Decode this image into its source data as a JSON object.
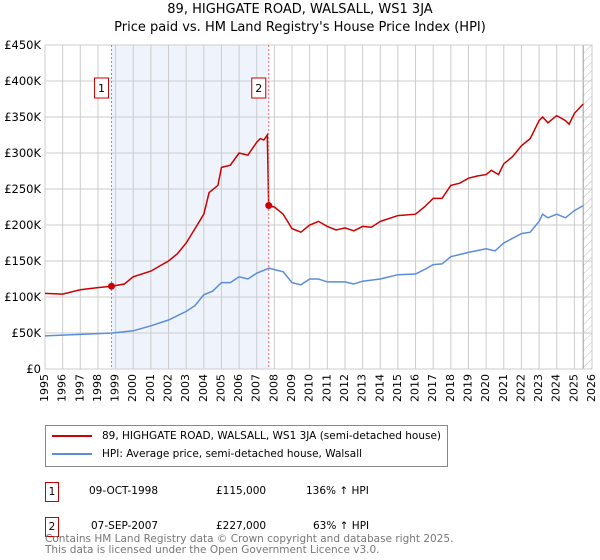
{
  "chart_data": {
    "type": "line",
    "title": "89, HIGHGATE ROAD, WALSALL, WS1 3JA",
    "subtitle": "Price paid vs. HM Land Registry's House Price Index (HPI)",
    "xlabel": "",
    "ylabel": "",
    "xlim": [
      1995,
      2026
    ],
    "ylim": [
      0,
      450000
    ],
    "grid": true,
    "x_ticks": [
      "1995",
      "1996",
      "1997",
      "1998",
      "1999",
      "2000",
      "2001",
      "2002",
      "2003",
      "2004",
      "2005",
      "2006",
      "2007",
      "2008",
      "2009",
      "2010",
      "2011",
      "2012",
      "2013",
      "2014",
      "2015",
      "2016",
      "2017",
      "2018",
      "2019",
      "2020",
      "2021",
      "2022",
      "2023",
      "2024",
      "2025",
      "2026"
    ],
    "y_ticks": [
      {
        "v": 0,
        "label": "£0"
      },
      {
        "v": 50000,
        "label": "£50K"
      },
      {
        "v": 100000,
        "label": "£100K"
      },
      {
        "v": 150000,
        "label": "£150K"
      },
      {
        "v": 200000,
        "label": "£200K"
      },
      {
        "v": 250000,
        "label": "£250K"
      },
      {
        "v": 300000,
        "label": "£300K"
      },
      {
        "v": 350000,
        "label": "£350K"
      },
      {
        "v": 400000,
        "label": "£400K"
      },
      {
        "v": 450000,
        "label": "£450K"
      }
    ],
    "shaded_range": [
      1998.77,
      2007.68
    ],
    "hatched_from": 2025.5,
    "series": [
      {
        "name": "89, HIGHGATE ROAD, WALSALL, WS1 3JA (semi-detached house)",
        "color": "#cc0000",
        "x": [
          1995,
          1996,
          1997,
          1998,
          1998.77,
          1999.5,
          2000,
          2001,
          2001.5,
          2002,
          2002.5,
          2003,
          2003.5,
          2004,
          2004.3,
          2004.8,
          2005,
          2005.5,
          2006,
          2006.5,
          2007,
          2007.2,
          2007.4,
          2007.6,
          2007.68,
          2008,
          2008.5,
          2009,
          2009.5,
          2010,
          2010.5,
          2011,
          2011.5,
          2012,
          2012.5,
          2013,
          2013.5,
          2014,
          2015,
          2016,
          2016.5,
          2017,
          2017.5,
          2018,
          2018.5,
          2019,
          2019.5,
          2020,
          2020.3,
          2020.7,
          2021,
          2021.5,
          2022,
          2022.5,
          2023,
          2023.2,
          2023.5,
          2024,
          2024.5,
          2024.7,
          2025,
          2025.5
        ],
        "y": [
          105000,
          104000,
          110000,
          113000,
          115000,
          118000,
          128000,
          136000,
          143000,
          150000,
          160000,
          175000,
          195000,
          215000,
          245000,
          255000,
          280000,
          283000,
          300000,
          297000,
          315000,
          320000,
          318000,
          325000,
          227000,
          225000,
          215000,
          195000,
          190000,
          200000,
          205000,
          198000,
          193000,
          196000,
          192000,
          198000,
          197000,
          205000,
          213000,
          215000,
          225000,
          237000,
          237000,
          255000,
          258000,
          265000,
          268000,
          270000,
          276000,
          270000,
          285000,
          295000,
          310000,
          320000,
          345000,
          350000,
          342000,
          352000,
          345000,
          340000,
          355000,
          368000
        ]
      },
      {
        "name": "HPI: Average price, semi-detached house, Walsall",
        "color": "#5b8ed6",
        "x": [
          1995,
          1997,
          1998.8,
          2000,
          2001,
          2002,
          2003,
          2003.5,
          2004,
          2004.5,
          2005,
          2005.5,
          2006,
          2006.5,
          2007,
          2007.7,
          2008,
          2008.5,
          2009,
          2009.5,
          2010,
          2010.5,
          2011,
          2012,
          2012.5,
          2013,
          2014,
          2015,
          2016,
          2016.5,
          2017,
          2017.5,
          2018,
          2019,
          2020,
          2020.5,
          2021,
          2022,
          2022.5,
          2023,
          2023.2,
          2023.5,
          2024,
          2024.5,
          2025,
          2025.5
        ],
        "y": [
          46000,
          48000,
          50000,
          53000,
          60000,
          68000,
          80000,
          88000,
          103000,
          108000,
          120000,
          120000,
          128000,
          125000,
          133000,
          140000,
          138000,
          135000,
          120000,
          117000,
          125000,
          125000,
          121000,
          121000,
          118000,
          122000,
          125000,
          131000,
          132000,
          138000,
          145000,
          146000,
          156000,
          162000,
          167000,
          164000,
          175000,
          188000,
          190000,
          205000,
          215000,
          210000,
          215000,
          210000,
          220000,
          227000
        ]
      }
    ],
    "annotations": [
      {
        "label": "1",
        "x": 1998.77,
        "y": 115000
      },
      {
        "label": "2",
        "x": 2007.68,
        "y": 227000
      }
    ],
    "legend_position": "below"
  },
  "transactions": [
    {
      "num": "1",
      "date": "09-OCT-1998",
      "price": "£115,000",
      "hpi": "136% ↑ HPI"
    },
    {
      "num": "2",
      "date": "07-SEP-2007",
      "price": "£227,000",
      "hpi": "63% ↑ HPI"
    }
  ],
  "footer": {
    "line1": "Contains HM Land Registry data © Crown copyright and database right 2025.",
    "line2": "This data is licensed under the Open Government Licence v3.0."
  }
}
